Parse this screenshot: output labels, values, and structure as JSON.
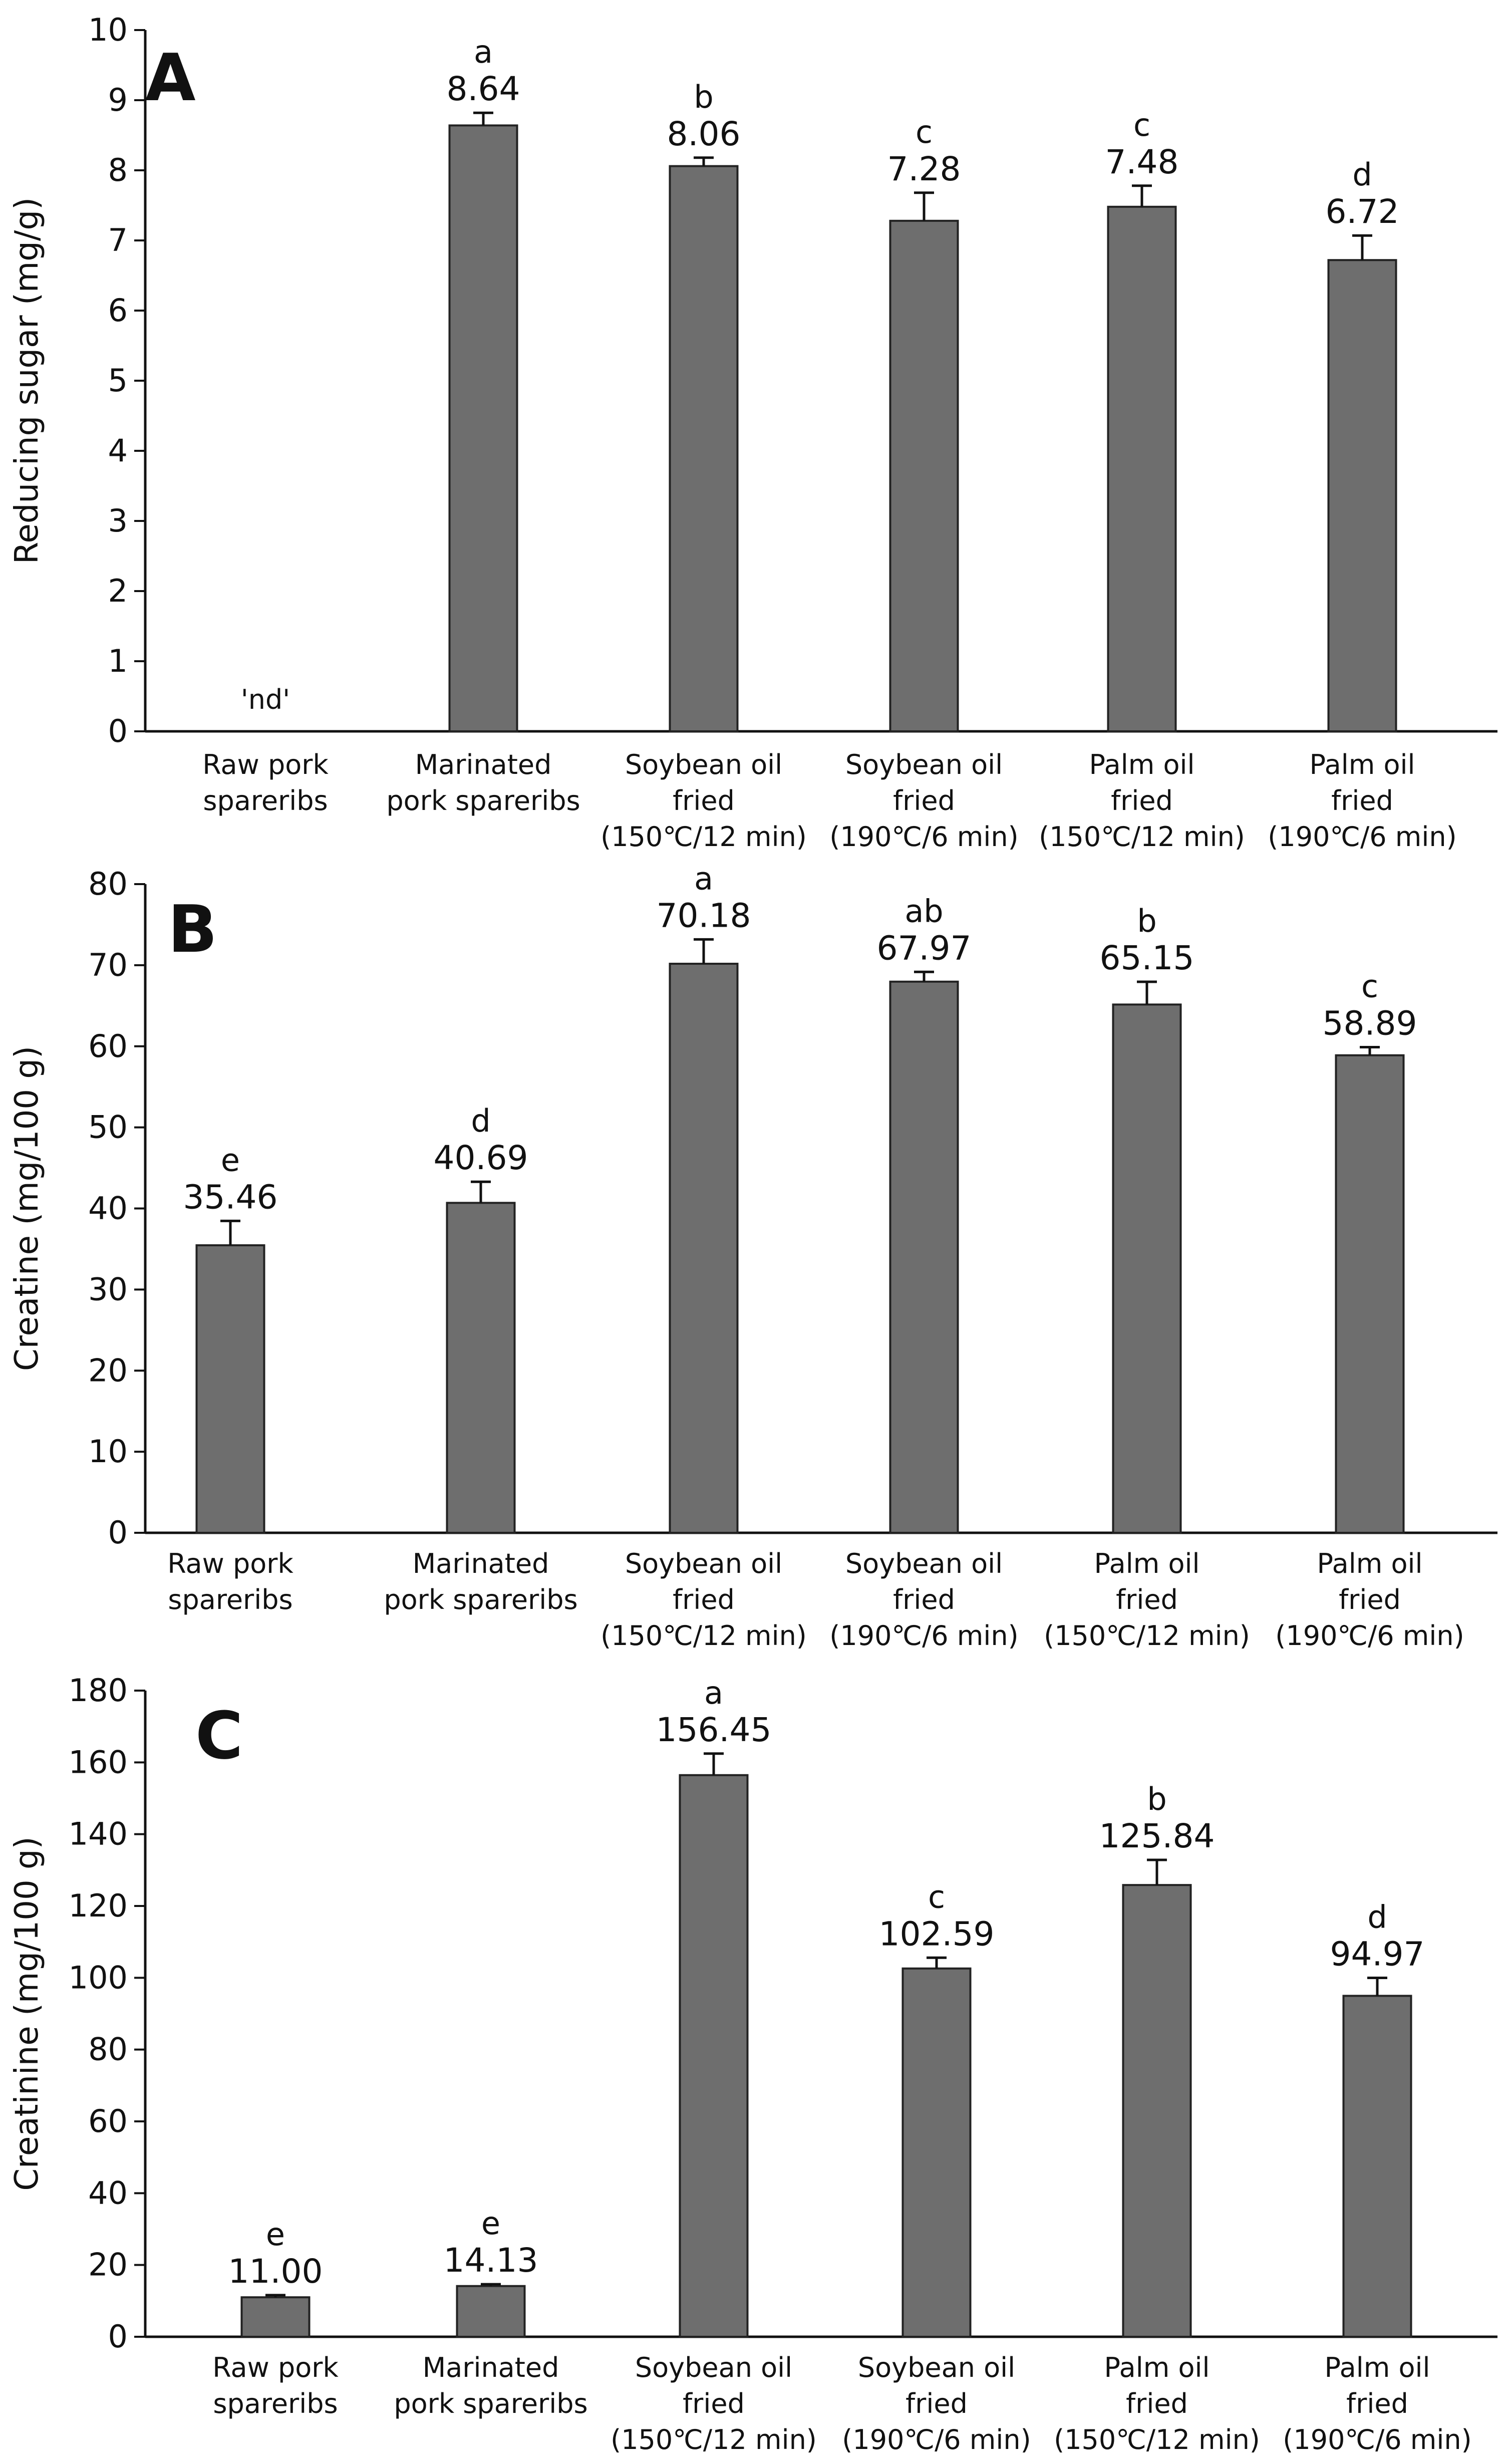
{
  "chart_data": [
    {
      "panel": "A",
      "type": "bar",
      "ylabel": "Reducing sugar (mg/g)",
      "ylim": [
        0,
        10
      ],
      "yticks": [
        0,
        1,
        2,
        3,
        4,
        5,
        6,
        7,
        8,
        9,
        10
      ],
      "categories": [
        [
          "Raw pork",
          "spareribs"
        ],
        [
          "Marinated",
          "pork spareribs"
        ],
        [
          "Soybean oil",
          "fried",
          "(150℃/12 min)"
        ],
        [
          "Soybean oil",
          "fried",
          "(190℃/6 min)"
        ],
        [
          "Palm oil",
          "fried",
          "(150℃/12 min)"
        ],
        [
          "Palm oil",
          "fried",
          "(190℃/6 min)"
        ]
      ],
      "values": [
        0,
        8.64,
        8.06,
        7.28,
        7.48,
        6.72
      ],
      "errors": [
        0,
        0.18,
        0.12,
        0.4,
        0.3,
        0.35
      ],
      "value_labels": [
        "",
        "8.64",
        "8.06",
        "7.28",
        "7.48",
        "6.72"
      ],
      "significance": [
        "",
        "a",
        "b",
        "c",
        "c",
        "d"
      ],
      "annotation": "'nd'",
      "bar_color": "#6e6e6e"
    },
    {
      "panel": "B",
      "type": "bar",
      "ylabel": "Creatine (mg/100 g)",
      "ylim": [
        0,
        80
      ],
      "yticks": [
        0,
        10,
        20,
        30,
        40,
        50,
        60,
        70,
        80
      ],
      "categories": [
        [
          "Raw pork",
          "spareribs"
        ],
        [
          "Marinated",
          "pork spareribs"
        ],
        [
          "Soybean oil",
          "fried",
          "(150℃/12 min)"
        ],
        [
          "Soybean oil",
          "fried",
          "(190℃/6 min)"
        ],
        [
          "Palm oil",
          "fried",
          "(150℃/12 min)"
        ],
        [
          "Palm oil",
          "fried",
          "(190℃/6 min)"
        ]
      ],
      "values": [
        35.46,
        40.69,
        70.18,
        67.97,
        65.15,
        58.89
      ],
      "errors": [
        3.0,
        2.6,
        3.0,
        1.2,
        2.8,
        1.0
      ],
      "value_labels": [
        "35.46",
        "40.69",
        "70.18",
        "67.97",
        "65.15",
        "58.89"
      ],
      "significance": [
        "e",
        "d",
        "a",
        "ab",
        "b",
        "c"
      ],
      "bar_color": "#6e6e6e"
    },
    {
      "panel": "C",
      "type": "bar",
      "ylabel": "Creatinine (mg/100 g)",
      "ylim": [
        0,
        180
      ],
      "yticks": [
        0,
        20,
        40,
        60,
        80,
        100,
        120,
        140,
        160,
        180
      ],
      "categories": [
        [
          "Raw pork",
          "spareribs"
        ],
        [
          "Marinated",
          "pork spareribs"
        ],
        [
          "Soybean oil",
          "fried",
          "(150℃/12 min)"
        ],
        [
          "Soybean oil",
          "fried",
          "(190℃/6 min)"
        ],
        [
          "Palm oil",
          "fried",
          "(150℃/12 min)"
        ],
        [
          "Palm oil",
          "fried",
          "(190℃/6 min)"
        ]
      ],
      "values": [
        11.0,
        14.13,
        156.45,
        102.59,
        125.84,
        94.97
      ],
      "errors": [
        0.6,
        0.5,
        6.0,
        3.0,
        7.0,
        5.0
      ],
      "value_labels": [
        "11.00",
        "14.13",
        "156.45",
        "102.59",
        "125.84",
        "94.97"
      ],
      "significance": [
        "e",
        "e",
        "a",
        "c",
        "b",
        "d"
      ],
      "bar_color": "#6e6e6e"
    }
  ]
}
